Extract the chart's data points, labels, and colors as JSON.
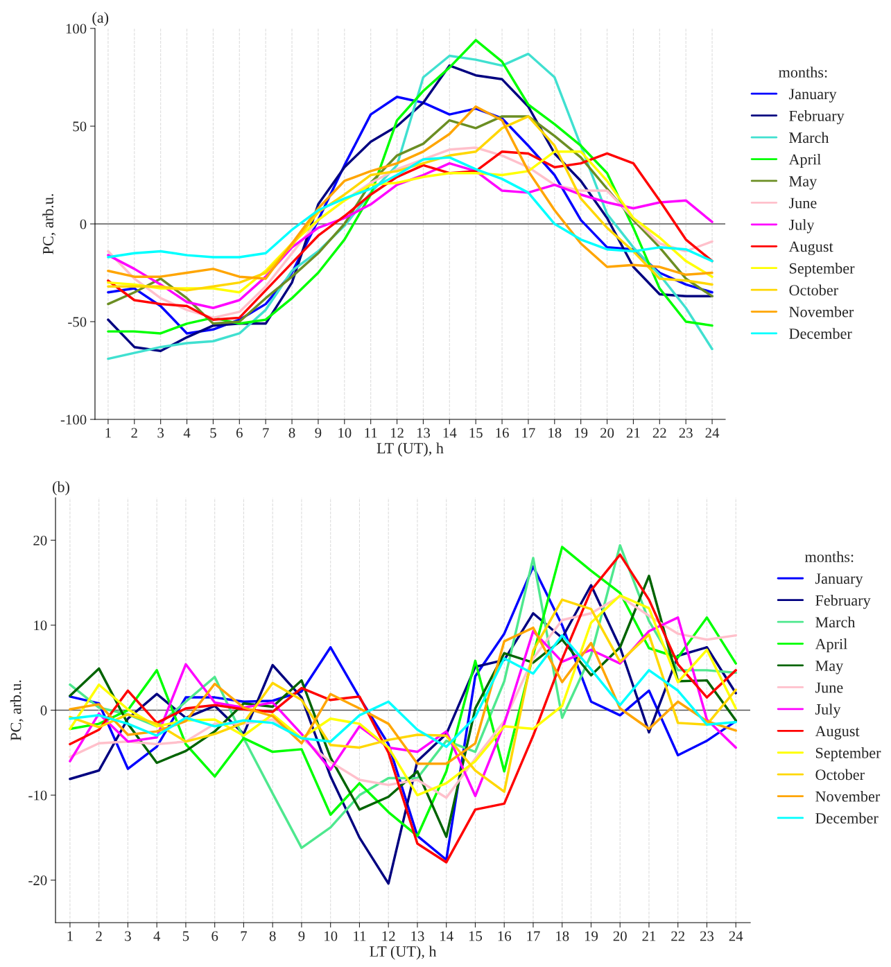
{
  "chart_data": [
    {
      "type": "line",
      "title": "(a)",
      "xlabel": "LT (UT), h",
      "ylabel": "PC, arb.u.",
      "legend_title": "months:",
      "legend": "right",
      "grid": "x",
      "marker": "none",
      "line_style": "solid",
      "x": [
        1,
        2,
        3,
        4,
        5,
        6,
        7,
        8,
        9,
        10,
        11,
        12,
        13,
        14,
        15,
        16,
        17,
        18,
        19,
        20,
        21,
        22,
        23,
        24
      ],
      "xlim": [
        0.5,
        24.5
      ],
      "xticks": [
        1,
        2,
        3,
        4,
        5,
        6,
        7,
        8,
        9,
        10,
        11,
        12,
        13,
        14,
        15,
        16,
        17,
        18,
        19,
        20,
        21,
        22,
        23,
        24
      ],
      "ylim": [
        -100,
        100
      ],
      "yticks": [
        {
          "value": -100,
          "label": "-100"
        },
        {
          "value": -50,
          "label": "-50"
        },
        0,
        50,
        100
      ],
      "ref_lines": [
        {
          "axis": "y",
          "value": 0,
          "color": "#555555"
        }
      ],
      "series": [
        {
          "name": "January",
          "color": "#0000ff",
          "values": [
            -35,
            -33,
            -42,
            -56,
            -54,
            -49,
            -41,
            -25,
            2,
            30,
            56,
            65,
            62,
            56,
            59,
            54,
            40,
            25,
            2,
            -12,
            -13,
            -25,
            -31,
            -35
          ]
        },
        {
          "name": "February",
          "color": "#000080",
          "values": [
            -49,
            -63,
            -65,
            -58,
            -52,
            -51,
            -51,
            -30,
            10,
            29,
            42,
            50,
            62,
            81,
            76,
            74,
            60,
            36,
            22,
            3,
            -22,
            -36,
            -37,
            -37
          ]
        },
        {
          "name": "March",
          "color": "#40e0d0",
          "values": [
            -69,
            -66,
            -63,
            -61,
            -60,
            -56,
            -44,
            -24,
            -14,
            -1,
            16,
            30,
            75,
            86,
            84,
            81,
            87,
            75,
            40,
            5,
            -12,
            -26,
            -43,
            -64
          ]
        },
        {
          "name": "April",
          "color": "#00ff00",
          "values": [
            -55,
            -55,
            -56,
            -51,
            -48,
            -51,
            -49,
            -38,
            -25,
            -8,
            15,
            53,
            68,
            80,
            94,
            83,
            61,
            51,
            40,
            26,
            -2,
            -33,
            -50,
            -52
          ]
        },
        {
          "name": "May",
          "color": "#6b8e23",
          "values": [
            -41,
            -35,
            -28,
            -38,
            -51,
            -50,
            -38,
            -27,
            -15,
            0,
            21,
            35,
            41,
            53,
            49,
            55,
            55,
            45,
            34,
            18,
            2,
            -12,
            -28,
            -37
          ]
        },
        {
          "name": "June",
          "color": "#ffc0cb",
          "values": [
            -14,
            -28,
            -38,
            -44,
            -48,
            -45,
            -32,
            -15,
            2,
            12,
            21,
            28,
            33,
            38,
            39,
            35,
            29,
            20,
            17,
            17,
            3,
            -10,
            -14,
            -9
          ]
        },
        {
          "name": "July",
          "color": "#ff00ff",
          "values": [
            -16,
            -23,
            -31,
            -40,
            -43,
            -39,
            -27,
            -12,
            -2,
            3,
            10,
            20,
            25,
            31,
            27,
            17,
            16,
            20,
            15,
            11,
            8,
            11,
            12,
            1
          ]
        },
        {
          "name": "August",
          "color": "#ff0000",
          "values": [
            -29,
            -39,
            -41,
            -42,
            -49,
            -48,
            -34,
            -20,
            -6,
            4,
            15,
            24,
            30,
            26,
            27,
            37,
            36,
            29,
            31,
            36,
            31,
            12,
            -8,
            -19
          ]
        },
        {
          "name": "September",
          "color": "#ffff00",
          "values": [
            -30,
            -31,
            -33,
            -33,
            -33,
            -35,
            -24,
            -10,
            2,
            12,
            20,
            21,
            24,
            26,
            26,
            25,
            27,
            37,
            37,
            22,
            3,
            -7,
            -19,
            -27
          ]
        },
        {
          "name": "October",
          "color": "#ffd700",
          "values": [
            -32,
            -32,
            -32,
            -34,
            -32,
            -30,
            -25,
            -11,
            6,
            15,
            25,
            27,
            31,
            35,
            37,
            49,
            55,
            40,
            13,
            -2,
            -14,
            -28,
            -29,
            -31
          ]
        },
        {
          "name": "November",
          "color": "#ffa500",
          "values": [
            -24,
            -27,
            -27,
            -25,
            -23,
            -27,
            -28,
            -10,
            8,
            22,
            27,
            31,
            37,
            46,
            60,
            53,
            27,
            7,
            -10,
            -22,
            -21,
            -22,
            -26,
            -25
          ]
        },
        {
          "name": "December",
          "color": "#00ffff",
          "values": [
            -17,
            -15,
            -14,
            -16,
            -17,
            -17,
            -15,
            -3,
            7,
            13,
            18,
            25,
            33,
            34,
            28,
            23,
            16,
            0,
            -8,
            -13,
            -14,
            -12,
            -13,
            -19
          ]
        }
      ]
    },
    {
      "type": "line",
      "title": "(b)",
      "xlabel": "LT (UT), h",
      "ylabel": "PC, arb.u.",
      "legend_title": "months:",
      "legend": "right",
      "grid": "x",
      "marker": "none",
      "line_style": "solid",
      "x": [
        1,
        2,
        3,
        4,
        5,
        6,
        7,
        8,
        9,
        10,
        11,
        12,
        13,
        14,
        15,
        16,
        17,
        18,
        19,
        20,
        21,
        22,
        23,
        24
      ],
      "xlim": [
        0.5,
        24.5
      ],
      "xticks": [
        1,
        2,
        3,
        4,
        5,
        6,
        7,
        8,
        9,
        10,
        11,
        12,
        13,
        14,
        15,
        16,
        17,
        18,
        19,
        20,
        21,
        22,
        23,
        24
      ],
      "ylim": [
        -25,
        25
      ],
      "yticks": [
        {
          "value": -20,
          "label": "-20"
        },
        {
          "value": -10,
          "label": "-10"
        },
        0,
        10,
        20
      ],
      "ref_lines": [
        {
          "axis": "y",
          "value": 0,
          "color": "#555555"
        }
      ],
      "series": [
        {
          "name": "January",
          "color": "#0000ff",
          "values": [
            1.6,
            0.8,
            -6.9,
            -4.3,
            1.5,
            1.5,
            1.0,
            1.1,
            2.2,
            7.4,
            1.5,
            -4,
            -14.8,
            -17.6,
            4,
            9,
            16.9,
            10,
            1.0,
            -0.6,
            2.3,
            -5.3,
            -3.6,
            -1.3
          ]
        },
        {
          "name": "February",
          "color": "#000080",
          "values": [
            -8.1,
            -7.1,
            -1,
            1.9,
            -0.9,
            0.5,
            -2.8,
            5.3,
            1.5,
            -7.8,
            -15,
            -20.4,
            -6,
            -2.8,
            5.1,
            5.9,
            11.4,
            8.5,
            14.7,
            7.4,
            -2.6,
            6.4,
            7.4,
            2.0
          ]
        },
        {
          "name": "March",
          "color": "#4ee88e",
          "values": [
            3.0,
            0.3,
            -0.5,
            -1.9,
            1.0,
            3.9,
            -3.3,
            -9.8,
            -16.2,
            -13.8,
            -10,
            -8,
            -8,
            -3.6,
            -4.9,
            3.4,
            17.9,
            -0.9,
            6.5,
            19.4,
            10.5,
            4.7,
            4.7,
            4.4
          ]
        },
        {
          "name": "April",
          "color": "#00ff00",
          "values": [
            -2.2,
            -1.6,
            0,
            4.7,
            -4.0,
            -7.8,
            -3.3,
            -4.9,
            -4.6,
            -12.3,
            -8.6,
            -12,
            -14.8,
            -7.2,
            5.8,
            -7.2,
            6.5,
            19.2,
            16.4,
            13.8,
            7.3,
            6.2,
            10.9,
            5.5
          ]
        },
        {
          "name": "May",
          "color": "#006400",
          "values": [
            1.7,
            4.9,
            -1.6,
            -6.2,
            -4.8,
            -2.5,
            0.8,
            0.4,
            3.5,
            -5.6,
            -11.7,
            -10.2,
            -7.2,
            -14.9,
            0.2,
            6.7,
            5.6,
            8.3,
            4.1,
            7.4,
            15.8,
            3.4,
            3.5,
            -1.2
          ]
        },
        {
          "name": "June",
          "color": "#ffc0cb",
          "values": [
            -5.5,
            -3.9,
            -3.7,
            -4.0,
            -3.7,
            -1.6,
            -1.6,
            -1.1,
            -3.3,
            -6.1,
            -8.2,
            -8.8,
            -8.2,
            -10.3,
            -5.7,
            -1.3,
            6.1,
            10.6,
            11.4,
            13.4,
            11.1,
            9.0,
            8.3,
            8.8
          ]
        },
        {
          "name": "July",
          "color": "#ff00ff",
          "values": [
            -6.0,
            -0.4,
            -3.7,
            -3.2,
            5.4,
            0.9,
            0.3,
            0.9,
            -2.8,
            -7.0,
            -1.9,
            -4.4,
            -4.9,
            -2.5,
            -10.1,
            -1.6,
            9.3,
            5.7,
            7.1,
            5.5,
            9.3,
            10.9,
            -1.1,
            -4.4
          ]
        },
        {
          "name": "August",
          "color": "#ff0000",
          "values": [
            -4.0,
            -2.3,
            2.3,
            -1.5,
            0.2,
            0.6,
            0.1,
            -0.2,
            2.6,
            1.2,
            1.6,
            -5.0,
            -15.7,
            -17.9,
            -11.7,
            -11.0,
            -3,
            6,
            14.1,
            18.3,
            13.0,
            5.4,
            1.5,
            4.7
          ]
        },
        {
          "name": "September",
          "color": "#ffff00",
          "values": [
            -2.2,
            3.0,
            0.1,
            -1.9,
            -1.2,
            -1.1,
            -3.0,
            -0.5,
            -3.3,
            -1.0,
            -1.6,
            -4.4,
            -10.0,
            -8.6,
            -6.0,
            -1.9,
            -2.2,
            0.5,
            10.3,
            13.5,
            12.0,
            3.3,
            7.1,
            0.2
          ]
        },
        {
          "name": "October",
          "color": "#ffd700",
          "values": [
            -0.8,
            -2.0,
            -0.5,
            -1.6,
            -3.7,
            -2.8,
            -1.5,
            3.2,
            1.2,
            -4.1,
            -4.4,
            -3.5,
            -2.9,
            -3.0,
            -7.1,
            -9.6,
            7,
            13.0,
            11.9,
            5.7,
            8.9,
            -1.5,
            -1.7,
            2.4
          ]
        },
        {
          "name": "November",
          "color": "#ffa500",
          "values": [
            0.1,
            0.7,
            -2.9,
            -2.5,
            -1.3,
            3.1,
            0.3,
            -0.7,
            -3.9,
            1.9,
            0.2,
            -1.6,
            -6.3,
            -6.3,
            -3.9,
            8.1,
            9.7,
            3.3,
            7.9,
            0.2,
            -2.2,
            1.0,
            -1.3,
            -2.4
          ]
        },
        {
          "name": "December",
          "color": "#00ffff",
          "values": [
            -1.0,
            -0.6,
            -1.6,
            -3.0,
            -0.9,
            -1.9,
            -1.2,
            -1.5,
            -3.3,
            -3.7,
            -0.6,
            1.0,
            -2.3,
            -4.3,
            -0.8,
            6.1,
            4.3,
            8.8,
            4.8,
            0.6,
            4.7,
            2.3,
            -1.7,
            -1.4
          ]
        }
      ]
    }
  ]
}
